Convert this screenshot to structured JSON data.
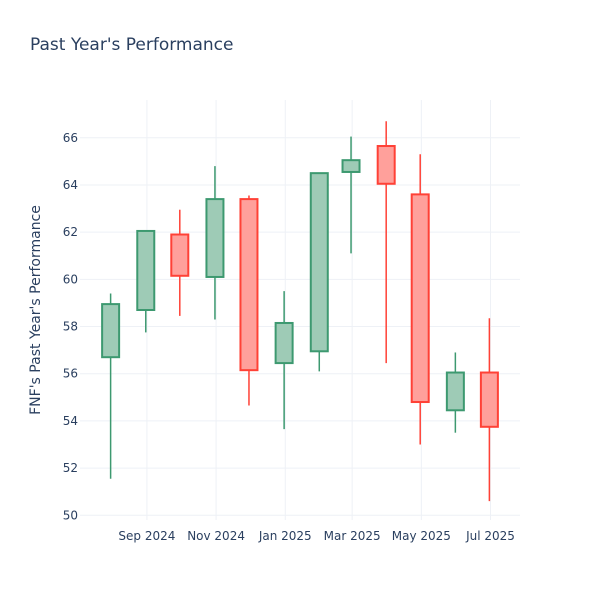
{
  "chart_data": {
    "type": "candlestick",
    "title": "Past Year's Performance",
    "xlabel": "",
    "ylabel": "FNF's Past Year's Performance",
    "ylim": [
      49.8,
      67.6
    ],
    "xlim": [
      "2024-07-04",
      "2025-07-27"
    ],
    "grid": true,
    "legend": "none",
    "y_ticks": [
      50,
      52,
      54,
      56,
      58,
      60,
      62,
      64,
      66
    ],
    "x_ticks": [
      {
        "date": "2024-09-01",
        "label": "Sep 2024"
      },
      {
        "date": "2024-11-01",
        "label": "Nov 2024"
      },
      {
        "date": "2025-01-01",
        "label": "Jan 2025"
      },
      {
        "date": "2025-03-01",
        "label": "Mar 2025"
      },
      {
        "date": "2025-05-01",
        "label": "May 2025"
      },
      {
        "date": "2025-07-01",
        "label": "Jul 2025"
      }
    ],
    "colors": {
      "increasing_line": "#3d9970",
      "increasing_fill": "#9ecbb6",
      "decreasing_line": "#ff4136",
      "decreasing_fill": "#ffa09b"
    },
    "candles": [
      {
        "date": "2024-07-31",
        "open": 56.7,
        "high": 59.4,
        "low": 51.55,
        "close": 58.95
      },
      {
        "date": "2024-08-31",
        "open": 58.7,
        "high": 62.05,
        "low": 57.75,
        "close": 62.05
      },
      {
        "date": "2024-09-30",
        "open": 61.9,
        "high": 62.95,
        "low": 58.45,
        "close": 60.15
      },
      {
        "date": "2024-10-31",
        "open": 60.1,
        "high": 64.8,
        "low": 58.3,
        "close": 63.4
      },
      {
        "date": "2024-11-30",
        "open": 63.4,
        "high": 63.55,
        "low": 54.65,
        "close": 56.15
      },
      {
        "date": "2024-12-31",
        "open": 56.45,
        "high": 59.5,
        "low": 53.65,
        "close": 58.15
      },
      {
        "date": "2025-01-31",
        "open": 56.95,
        "high": 64.5,
        "low": 56.1,
        "close": 64.5
      },
      {
        "date": "2025-02-28",
        "open": 64.55,
        "high": 66.05,
        "low": 61.1,
        "close": 65.05
      },
      {
        "date": "2025-03-31",
        "open": 65.65,
        "high": 66.7,
        "low": 56.45,
        "close": 64.05
      },
      {
        "date": "2025-04-30",
        "open": 63.6,
        "high": 65.3,
        "low": 53.0,
        "close": 54.8
      },
      {
        "date": "2025-05-31",
        "open": 54.45,
        "high": 56.9,
        "low": 53.5,
        "close": 56.05
      },
      {
        "date": "2025-06-30",
        "open": 56.05,
        "high": 58.35,
        "low": 50.6,
        "close": 53.75
      }
    ]
  }
}
